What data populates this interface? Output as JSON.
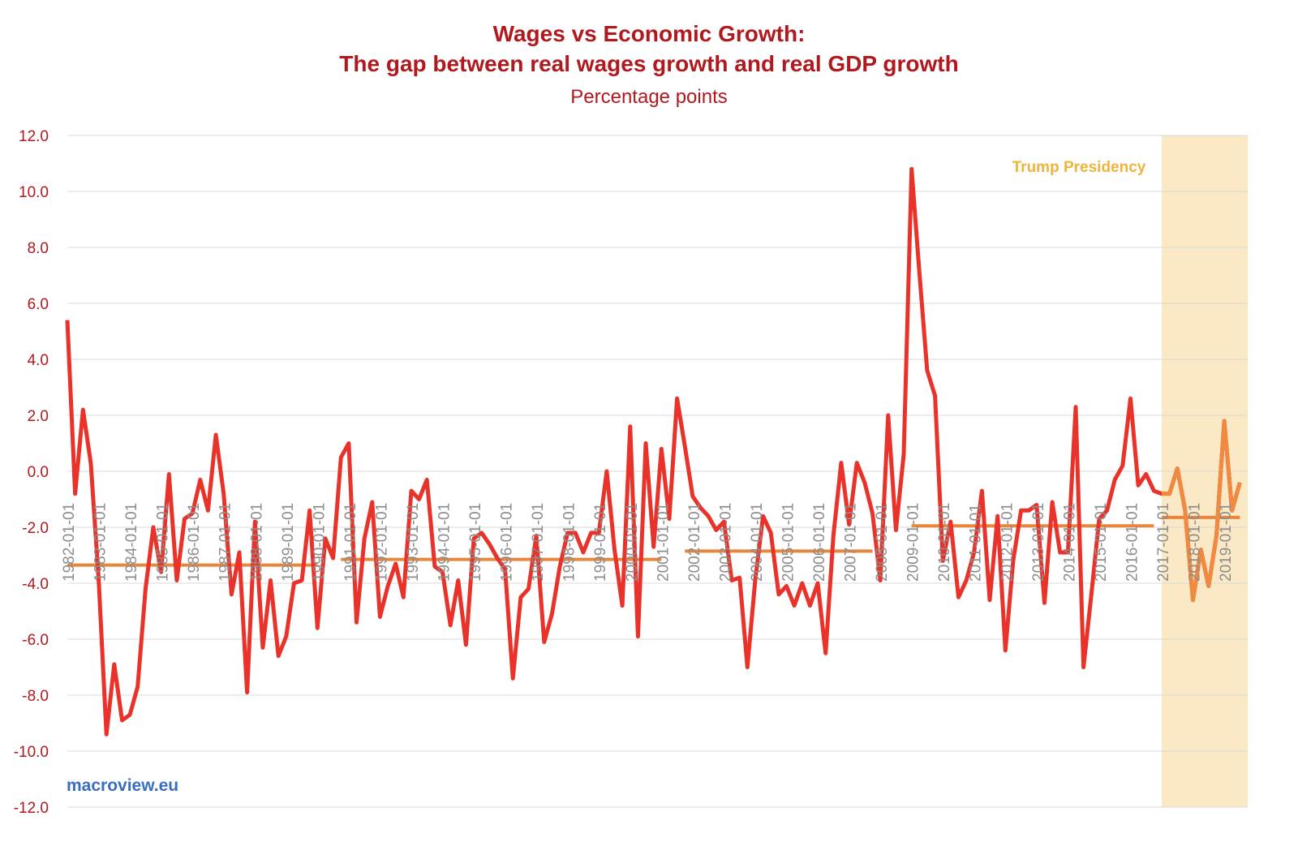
{
  "chart_data": {
    "type": "line",
    "title": "Wages vs Economic Growth:",
    "title_line2": "The gap between real wages growth and real GDP growth",
    "subtitle": "Percentage points",
    "xlabel": "",
    "ylabel": "",
    "ylim": [
      -12,
      12
    ],
    "yticks": [
      "12.0",
      "10.0",
      "8.0",
      "6.0",
      "4.0",
      "2.0",
      "0.0",
      "-2.0",
      "-4.0",
      "-6.0",
      "-8.0",
      "-10.0",
      "-12.0"
    ],
    "grid": true,
    "x_start": "1982-01-01",
    "x_step": "quarterly",
    "xticks": [
      "1982-01-01",
      "1983-01-01",
      "1984-01-01",
      "1985-01-01",
      "1986-01-01",
      "1987-01-01",
      "1988-01-01",
      "1989-01-01",
      "1990-01-01",
      "1991-01-01",
      "1992-01-01",
      "1993-01-01",
      "1994-01-01",
      "1995-01-01",
      "1996-01-01",
      "1997-01-01",
      "1998-01-01",
      "1999-01-01",
      "2000-01-01",
      "2001-01-01",
      "2002-01-01",
      "2003-01-01",
      "2004-01-01",
      "2005-01-01",
      "2006-01-01",
      "2007-01-01",
      "2008-01-01",
      "2009-01-01",
      "2010-01-01",
      "2011-01-01",
      "2012-01-01",
      "2013-01-01",
      "2014-01-01",
      "2015-01-01",
      "2016-01-01",
      "2017-01-01",
      "2018-01-01",
      "2019-01-01"
    ],
    "series": [
      {
        "values": [
          5.4,
          -0.8,
          2.2,
          0.3,
          -3.8,
          -9.4,
          -6.9,
          -8.9,
          -8.7,
          -7.7,
          -4.2,
          -2.0,
          -3.6,
          -0.1,
          -3.9,
          -1.7,
          -1.5,
          -0.3,
          -1.4,
          1.3,
          -0.8,
          -4.4,
          -2.9,
          -7.9,
          -1.8,
          -6.3,
          -3.9,
          -6.6,
          -5.9,
          -4.0,
          -3.9,
          -1.4,
          -5.6,
          -2.4,
          -3.1,
          0.5,
          1.0,
          -5.4,
          -2.4,
          -1.1,
          -5.2,
          -4.1,
          -3.3,
          -4.5,
          -0.7,
          -1.0,
          -0.3,
          -3.4,
          -3.6,
          -5.5,
          -3.9,
          -6.2,
          -2.4,
          -2.2,
          -2.6,
          -3.1,
          -3.5,
          -7.4,
          -4.5,
          -4.2,
          -2.3,
          -6.1,
          -5.1,
          -3.4,
          -2.2,
          -2.2,
          -2.9,
          -2.2,
          -2.2,
          0.0,
          -2.8,
          -4.8,
          1.6,
          -5.9,
          1.0,
          -2.7,
          0.8,
          -1.7,
          2.6,
          0.9,
          -0.9,
          -1.3,
          -1.6,
          -2.1,
          -1.8,
          -3.9,
          -3.8,
          -7.0,
          -3.9,
          -1.6,
          -2.2,
          -4.4,
          -4.1,
          -4.8,
          -4.0,
          -4.8,
          -4.0,
          -6.5,
          -2.3,
          0.3,
          -1.9,
          0.3,
          -0.4,
          -1.5,
          -3.9,
          2.0,
          -2.1,
          0.6,
          10.8,
          7.1,
          3.6,
          2.7,
          -3.2,
          -1.8,
          -4.5,
          -3.9,
          -2.9,
          -0.7,
          -4.6,
          -1.6,
          -6.4,
          -3.2,
          -1.4,
          -1.4,
          -1.2,
          -4.7,
          -1.1,
          -2.9,
          -2.9,
          2.3,
          -7.0,
          -4.4,
          -1.7,
          -1.4,
          -0.3,
          0.2,
          2.6,
          -0.5,
          -0.1,
          -0.7,
          -0.8,
          -0.8,
          0.1,
          -1.4,
          -4.6,
          -2.8,
          -4.1,
          -2.3,
          1.8,
          -1.4,
          -0.4
        ]
      },
      {
        "type": "step",
        "segments": [
          {
            "from": "1982-01-01",
            "to": "1990-01-01",
            "value": -3.35
          },
          {
            "from": "1990-10-01",
            "to": "2001-01-01",
            "value": -3.15
          },
          {
            "from": "2001-10-01",
            "to": "2007-10-01",
            "value": -2.85
          },
          {
            "from": "2009-01-01",
            "to": "2016-10-01",
            "value": -1.95
          },
          {
            "from": "2017-01-01",
            "to": "2019-07-01",
            "value": -1.65
          }
        ]
      }
    ],
    "annotations": [
      {
        "text": "Trump Presidency",
        "from": "2017-01-01",
        "to": "2019-09-30"
      }
    ],
    "colors": {
      "title": "#b0191e",
      "axis_labels": "#b0191e",
      "x_labels": "#8c8c8c",
      "grid": "#d9d9d9",
      "gap_line": "#e8322a",
      "average_line": "#e8863c",
      "trump_shade": "#fbe8c4",
      "trump_text": "#f0b43c",
      "trump_line": "#f08a40",
      "watermark": "#3a6fbf"
    }
  },
  "watermark": "macroview.eu"
}
